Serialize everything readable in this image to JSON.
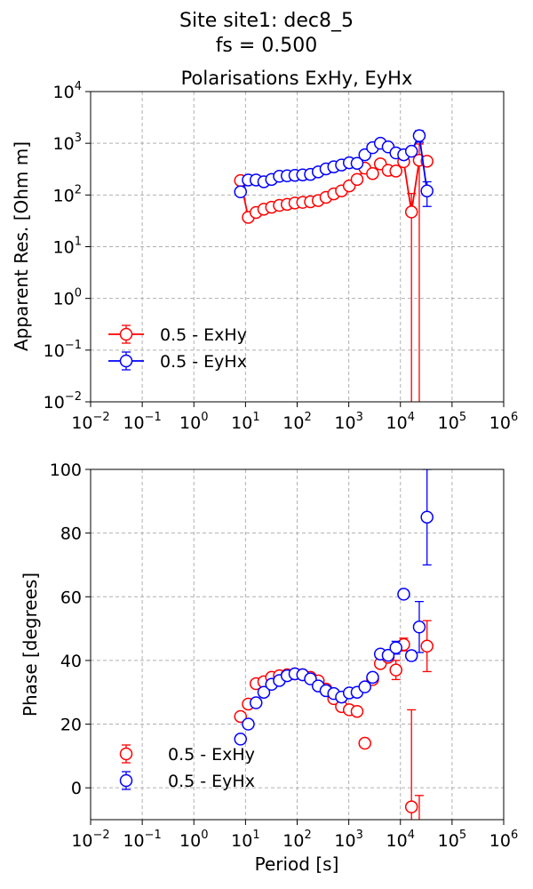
{
  "figure_title": [
    "Site site1: dec8_5",
    "fs = 0.500"
  ],
  "chart_data": [
    {
      "type": "line",
      "title": "Polarisations ExHy, EyHx",
      "y_label": "Apparent Res. [Ohm m]",
      "xscale": "log",
      "yscale": "log",
      "grid": true,
      "legend": "lower left",
      "x": [
        8,
        11.31,
        16,
        22.63,
        32,
        45.25,
        64,
        90.51,
        128,
        181,
        256,
        362,
        512,
        724.1,
        1024,
        1448.2,
        2048,
        2896.3,
        4096,
        5792.6,
        8192,
        11585.2,
        16384,
        23170.5,
        32768
      ],
      "xlim": [
        0.01,
        1000000
      ],
      "xticks": [
        {
          "value": 0.01,
          "label": "10",
          "exponent": "−2"
        },
        {
          "value": 0.1,
          "label": "10",
          "exponent": "−1"
        },
        {
          "value": 1,
          "label": "10",
          "exponent": "0"
        },
        {
          "value": 10,
          "label": "10",
          "exponent": "1"
        },
        {
          "value": 100,
          "label": "10",
          "exponent": "2"
        },
        {
          "value": 1000,
          "label": "10",
          "exponent": "3"
        },
        {
          "value": 10000,
          "label": "10",
          "exponent": "4"
        },
        {
          "value": 100000,
          "label": "10",
          "exponent": "5"
        },
        {
          "value": 1000000,
          "label": "10",
          "exponent": "6"
        }
      ],
      "ylim": [
        0.01,
        10000
      ],
      "yticks": [
        {
          "value": 0.01,
          "label": "10",
          "exponent": "−2"
        },
        {
          "value": 0.1,
          "label": "10",
          "exponent": "−1"
        },
        {
          "value": 1,
          "label": "10",
          "exponent": "0"
        },
        {
          "value": 10,
          "label": "10",
          "exponent": "1"
        },
        {
          "value": 100,
          "label": "10",
          "exponent": "2"
        },
        {
          "value": 1000,
          "label": "10",
          "exponent": "3"
        },
        {
          "value": 10000,
          "label": "10",
          "exponent": "4"
        }
      ],
      "series": [
        {
          "name": "0.5 - ExHy",
          "color": "#ff0000",
          "values": [
            190,
            37,
            46,
            53,
            58,
            63,
            66,
            70,
            72,
            74,
            78,
            90,
            105,
            120,
            150,
            200,
            330,
            260,
            400,
            300,
            290,
            440,
            47,
            470,
            450
          ],
          "errors": [
            8,
            2,
            2,
            2,
            2,
            3,
            3,
            3,
            3,
            3,
            3,
            4,
            5,
            5,
            6,
            8,
            15,
            12,
            20,
            15,
            15,
            30,
            60,
            500,
            40
          ]
        },
        {
          "name": "0.5 - EyHx",
          "color": "#0000ff",
          "values": [
            115,
            195,
            195,
            180,
            200,
            230,
            235,
            240,
            245,
            250,
            280,
            320,
            350,
            380,
            420,
            410,
            600,
            820,
            1000,
            850,
            650,
            600,
            700,
            1400,
            120
          ],
          "errors": [
            5,
            8,
            8,
            7,
            8,
            9,
            9,
            10,
            10,
            10,
            11,
            13,
            14,
            15,
            17,
            16,
            24,
            33,
            40,
            34,
            26,
            40,
            100,
            350,
            60
          ]
        }
      ]
    },
    {
      "type": "scatter",
      "y_label": "Phase [degrees]",
      "x_label": "Period [s]",
      "xscale": "log",
      "grid": true,
      "legend": "lower left",
      "x": [
        8,
        11.31,
        16,
        22.63,
        32,
        45.25,
        64,
        90.51,
        128,
        181,
        256,
        362,
        512,
        724.1,
        1024,
        1448.2,
        2048,
        2896.3,
        4096,
        5792.6,
        8192,
        11585.2,
        16384,
        23170.5,
        32768
      ],
      "xlim": [
        0.01,
        1000000
      ],
      "xticks": [
        {
          "value": 0.01,
          "label": "10",
          "exponent": "−2"
        },
        {
          "value": 0.1,
          "label": "10",
          "exponent": "−1"
        },
        {
          "value": 1,
          "label": "10",
          "exponent": "0"
        },
        {
          "value": 10,
          "label": "10",
          "exponent": "1"
        },
        {
          "value": 100,
          "label": "10",
          "exponent": "2"
        },
        {
          "value": 1000,
          "label": "10",
          "exponent": "3"
        },
        {
          "value": 10000,
          "label": "10",
          "exponent": "4"
        },
        {
          "value": 100000,
          "label": "10",
          "exponent": "5"
        },
        {
          "value": 1000000,
          "label": "10",
          "exponent": "6"
        }
      ],
      "ylim": [
        -10,
        100
      ],
      "yticks": [
        0,
        20,
        40,
        60,
        80,
        100
      ],
      "series": [
        {
          "name": "0.5 - ExHy",
          "color": "#ff0000",
          "values": [
            22.4,
            26.3,
            32.7,
            33.3,
            34.7,
            35.2,
            35.5,
            35.8,
            35.5,
            34.7,
            33.6,
            31,
            28,
            25.5,
            24.5,
            24,
            14,
            34,
            39,
            41,
            37,
            45,
            -6,
            -20,
            44.5
          ],
          "errors": [
            0.5,
            0.5,
            0.5,
            0.5,
            0.5,
            0.5,
            0.5,
            0.5,
            0.5,
            0.5,
            0.5,
            0.5,
            0.5,
            0.5,
            0.5,
            0.5,
            0.5,
            0.5,
            1,
            1,
            3,
            2,
            30.5,
            17.6,
            8
          ]
        },
        {
          "name": "0.5 - EyHx",
          "color": "#0000ff",
          "values": [
            15.3,
            20,
            26.7,
            30,
            32.5,
            33.7,
            35.2,
            35.8,
            35.5,
            34.2,
            32,
            30.5,
            29.6,
            28.5,
            29.8,
            30,
            31.7,
            34.7,
            42,
            41.6,
            44,
            60.8,
            41.5,
            50.5,
            85
          ],
          "errors": [
            0.5,
            0.5,
            0.5,
            0.5,
            0.5,
            0.5,
            0.5,
            0.5,
            0.5,
            0.5,
            0.5,
            0.5,
            0.5,
            0.5,
            0.5,
            0.5,
            0.5,
            0.5,
            1,
            1,
            2,
            1,
            1.5,
            8,
            15
          ]
        }
      ]
    }
  ]
}
